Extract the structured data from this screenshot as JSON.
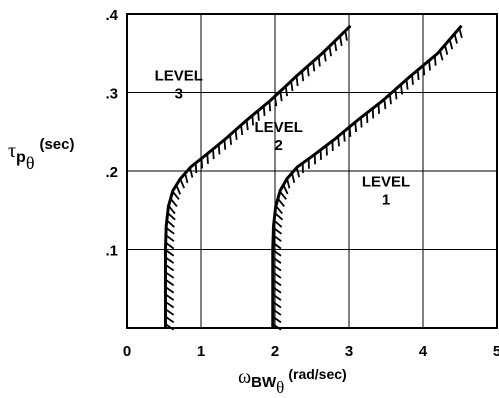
{
  "chart_data": {
    "type": "line",
    "title": "",
    "xlabel": {
      "symbol": "ω",
      "sub": "BW",
      "subsub": "θ",
      "unit": "(rad/sec)"
    },
    "ylabel": {
      "symbol": "τ",
      "sub": "p",
      "subsub": "θ",
      "unit": "(sec)"
    },
    "xlim": [
      0,
      5
    ],
    "ylim": [
      0,
      0.4
    ],
    "x_ticks": [
      "0",
      "1",
      "2",
      "3",
      "4",
      "5"
    ],
    "y_ticks": [
      ".1",
      ".2",
      ".3",
      ".4"
    ],
    "x_tick_values": [
      0,
      1,
      2,
      3,
      4,
      5
    ],
    "y_tick_values": [
      0.1,
      0.2,
      0.3,
      0.4
    ],
    "grid": true,
    "series": [
      {
        "id": "boundary-level-1-2",
        "x": [
          0.52,
          0.52,
          0.53,
          0.56,
          0.62,
          0.72,
          0.86,
          1.06,
          1.32,
          1.62,
          1.94,
          2.28,
          2.64,
          3.02
        ],
        "y": [
          0.0,
          0.1,
          0.13,
          0.155,
          0.175,
          0.19,
          0.205,
          0.22,
          0.24,
          0.265,
          0.29,
          0.32,
          0.35,
          0.385
        ]
      },
      {
        "id": "boundary-level-2-3",
        "x": [
          1.97,
          1.97,
          1.98,
          2.01,
          2.07,
          2.16,
          2.3,
          2.52,
          2.8,
          3.12,
          3.46,
          3.82,
          4.2,
          4.52
        ],
        "y": [
          0.0,
          0.1,
          0.13,
          0.155,
          0.175,
          0.19,
          0.205,
          0.22,
          0.24,
          0.265,
          0.29,
          0.32,
          0.35,
          0.385
        ]
      }
    ],
    "annotations": [
      {
        "text": [
          "LEVEL",
          "3"
        ],
        "x": 0.7,
        "y": 0.315
      },
      {
        "text": [
          "LEVEL",
          "2"
        ],
        "x": 2.05,
        "y": 0.25
      },
      {
        "text": [
          "LEVEL",
          "1"
        ],
        "x": 3.5,
        "y": 0.18
      }
    ]
  }
}
